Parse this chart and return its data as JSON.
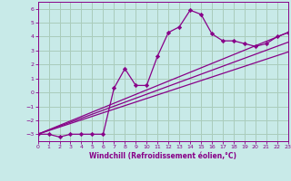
{
  "xlabel": "Windchill (Refroidissement éolien,°C)",
  "bg_color": "#c8eae8",
  "grid_color": "#aaccbb",
  "line_color": "#880088",
  "xlim": [
    0,
    23
  ],
  "ylim": [
    -3.5,
    6.5
  ],
  "yticks": [
    -3,
    -2,
    -1,
    0,
    1,
    2,
    3,
    4,
    5,
    6
  ],
  "xticks": [
    0,
    1,
    2,
    3,
    4,
    5,
    6,
    7,
    8,
    9,
    10,
    11,
    12,
    13,
    14,
    15,
    16,
    17,
    18,
    19,
    20,
    21,
    22,
    23
  ],
  "main_x": [
    0,
    1,
    2,
    3,
    4,
    5,
    6,
    7,
    8,
    9,
    10,
    11,
    12,
    13,
    14,
    15,
    16,
    17,
    18,
    19,
    20,
    21,
    22,
    23
  ],
  "main_y": [
    -3.0,
    -3.0,
    -3.2,
    -3.0,
    -3.0,
    -3.0,
    -3.0,
    0.3,
    1.7,
    0.5,
    0.5,
    2.6,
    4.3,
    4.7,
    5.9,
    5.6,
    4.2,
    3.7,
    3.7,
    3.5,
    3.3,
    3.5,
    4.0,
    4.3
  ],
  "line1_x": [
    0,
    23
  ],
  "line1_y": [
    -3.0,
    4.3
  ],
  "line2_x": [
    0,
    23
  ],
  "line2_y": [
    -3.0,
    3.6
  ],
  "line3_x": [
    0,
    23
  ],
  "line3_y": [
    -3.0,
    2.9
  ]
}
